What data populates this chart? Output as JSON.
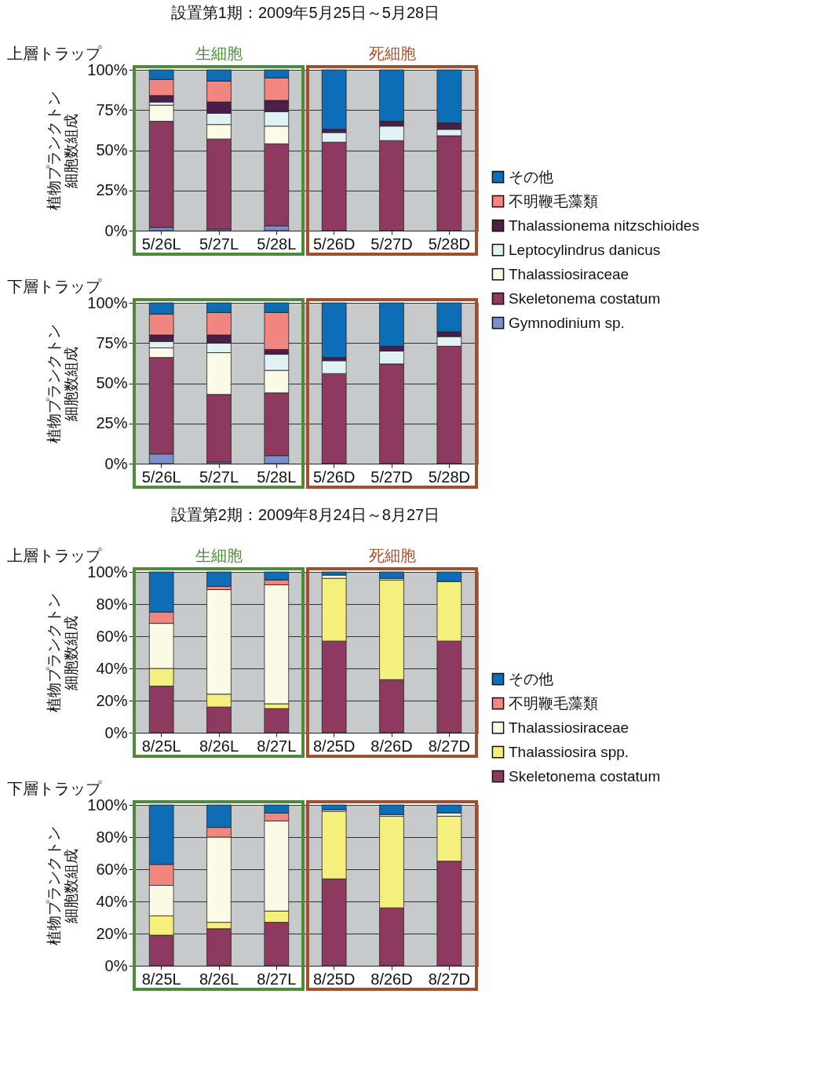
{
  "chart_data": [
    {
      "type": "bar",
      "stacked": true,
      "title": "設置第1期：2009年5月25日～5月28日",
      "ylabel": "植物プランクトン細胞数組成",
      "annotations": [
        "上層トラップ",
        "生細胞",
        "死細胞"
      ],
      "categories": [
        "5/26L",
        "5/27L",
        "5/28L",
        "5/26D",
        "5/27D",
        "5/28D"
      ],
      "ylim": [
        0,
        100
      ],
      "yticks": [
        {
          "value": 0,
          "label": "0%"
        },
        {
          "value": 25,
          "label": "25%"
        },
        {
          "value": 50,
          "label": "50%"
        },
        {
          "value": 75,
          "label": "75%"
        },
        {
          "value": 100,
          "label": "100%"
        }
      ],
      "grid": "y",
      "legend": "right",
      "series": [
        {
          "name": "Gymnodinium sp.",
          "color": "#7b8fcb",
          "values": [
            2,
            1,
            3,
            null,
            null,
            null
          ]
        },
        {
          "name": "Skeletonema costatum",
          "color": "#8e3a60",
          "values": [
            66,
            56,
            51,
            55,
            56,
            59
          ]
        },
        {
          "name": "Thalassiosiraceae",
          "color": "#fafae6",
          "values": [
            10,
            9,
            11,
            null,
            null,
            null
          ]
        },
        {
          "name": "Leptocylindrus danicus",
          "color": "#e0f2f2",
          "values": [
            2,
            7,
            9,
            6,
            9,
            4
          ]
        },
        {
          "name": "Thalassionema nitzschioides",
          "color": "#4b1f4a",
          "values": [
            4,
            7,
            7,
            2,
            3,
            4
          ]
        },
        {
          "name": "不明鞭毛藻類",
          "color": "#f28680",
          "values": [
            10,
            13,
            14,
            null,
            null,
            null
          ]
        },
        {
          "name": "その他",
          "color": "#0e6eb5",
          "values": [
            6,
            7,
            5,
            37,
            32,
            33
          ]
        }
      ]
    },
    {
      "type": "bar",
      "stacked": true,
      "ylabel": "植物プランクトン細胞数組成",
      "annotations": [
        "下層トラップ"
      ],
      "categories": [
        "5/26L",
        "5/27L",
        "5/28L",
        "5/26D",
        "5/27D",
        "5/28D"
      ],
      "ylim": [
        0,
        100
      ],
      "yticks": [
        {
          "value": 0,
          "label": "0%"
        },
        {
          "value": 25,
          "label": "25%"
        },
        {
          "value": 50,
          "label": "50%"
        },
        {
          "value": 75,
          "label": "75%"
        },
        {
          "value": 100,
          "label": "100%"
        }
      ],
      "grid": "y",
      "legend": "right",
      "series": [
        {
          "name": "Gymnodinium sp.",
          "color": "#7b8fcb",
          "values": [
            6,
            1,
            5,
            null,
            null,
            null
          ]
        },
        {
          "name": "Skeletonema costatum",
          "color": "#8e3a60",
          "values": [
            60,
            42,
            39,
            56,
            62,
            73
          ]
        },
        {
          "name": "Thalassiosiraceae",
          "color": "#fafae6",
          "values": [
            6,
            26,
            14,
            null,
            null,
            null
          ]
        },
        {
          "name": "Leptocylindrus danicus",
          "color": "#e0f2f2",
          "values": [
            4,
            6,
            10,
            8,
            8,
            6
          ]
        },
        {
          "name": "Thalassionema nitzschioides",
          "color": "#4b1f4a",
          "values": [
            4,
            5,
            3,
            2,
            3,
            3
          ]
        },
        {
          "name": "不明鞭毛藻類",
          "color": "#f28680",
          "values": [
            13,
            14,
            23,
            null,
            null,
            null
          ]
        },
        {
          "name": "その他",
          "color": "#0e6eb5",
          "values": [
            7,
            6,
            6,
            34,
            27,
            18
          ]
        }
      ]
    },
    {
      "type": "bar",
      "stacked": true,
      "title": "設置第2期：2009年8月24日～8月27日",
      "ylabel": "植物プランクトン細胞数組成",
      "annotations": [
        "上層トラップ",
        "生細胞",
        "死細胞"
      ],
      "categories": [
        "8/25L",
        "8/26L",
        "8/27L",
        "8/25D",
        "8/26D",
        "8/27D"
      ],
      "ylim": [
        0,
        100
      ],
      "yticks": [
        {
          "value": 0,
          "label": "0%"
        },
        {
          "value": 20,
          "label": "20%"
        },
        {
          "value": 40,
          "label": "40%"
        },
        {
          "value": 60,
          "label": "60%"
        },
        {
          "value": 80,
          "label": "80%"
        },
        {
          "value": 100,
          "label": "100%"
        }
      ],
      "grid": "y",
      "legend": "right",
      "series": [
        {
          "name": "Skeletonema costatum",
          "color": "#8e3a60",
          "values": [
            29,
            16,
            15,
            57,
            33,
            57
          ]
        },
        {
          "name": "Thalassiosira spp.",
          "color": "#f5ef80",
          "values": [
            11,
            8,
            3,
            39,
            62,
            37
          ]
        },
        {
          "name": "Thalassiosiraceae",
          "color": "#fafae6",
          "values": [
            28,
            65,
            74,
            2,
            1,
            null
          ]
        },
        {
          "name": "不明鞭毛藻類",
          "color": "#f28680",
          "values": [
            7,
            2,
            3,
            null,
            null,
            null
          ]
        },
        {
          "name": "その他",
          "color": "#0e6eb5",
          "values": [
            25,
            9,
            5,
            2,
            4,
            6
          ]
        }
      ]
    },
    {
      "type": "bar",
      "stacked": true,
      "ylabel": "植物プランクトン細胞数組成",
      "annotations": [
        "下層トラップ"
      ],
      "categories": [
        "8/25L",
        "8/26L",
        "8/27L",
        "8/25D",
        "8/26D",
        "8/27D"
      ],
      "ylim": [
        0,
        100
      ],
      "yticks": [
        {
          "value": 0,
          "label": "0%"
        },
        {
          "value": 20,
          "label": "20%"
        },
        {
          "value": 40,
          "label": "40%"
        },
        {
          "value": 60,
          "label": "60%"
        },
        {
          "value": 80,
          "label": "80%"
        },
        {
          "value": 100,
          "label": "100%"
        }
      ],
      "grid": "y",
      "legend": "right",
      "series": [
        {
          "name": "Skeletonema costatum",
          "color": "#8e3a60",
          "values": [
            19,
            23,
            27,
            54,
            36,
            65
          ]
        },
        {
          "name": "Thalassiosira spp.",
          "color": "#f5ef80",
          "values": [
            12,
            4,
            7,
            42,
            57,
            28
          ]
        },
        {
          "name": "Thalassiosiraceae",
          "color": "#fafae6",
          "values": [
            19,
            53,
            56,
            1,
            1,
            2
          ]
        },
        {
          "name": "不明鞭毛藻類",
          "color": "#f28680",
          "values": [
            13,
            6,
            5,
            null,
            null,
            null
          ]
        },
        {
          "name": "その他",
          "color": "#0e6eb5",
          "values": [
            37,
            14,
            5,
            3,
            6,
            5
          ]
        }
      ]
    }
  ]
}
